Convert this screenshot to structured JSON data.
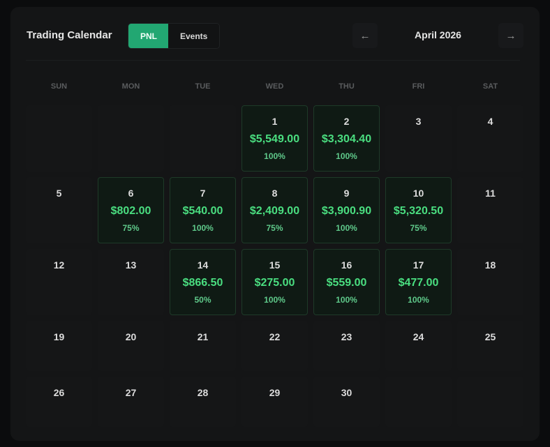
{
  "header": {
    "title": "Trading Calendar",
    "tabs": [
      "PNL",
      "Events"
    ],
    "prev": "←",
    "month": "April 2026",
    "next": "→"
  },
  "weekdays": [
    "SUN",
    "MON",
    "TUE",
    "WED",
    "THU",
    "FRI",
    "SAT"
  ],
  "weeks": [
    [
      null,
      null,
      null,
      {
        "day": "1",
        "pnl": "$5,549.00",
        "rate": "100%"
      },
      {
        "day": "2",
        "pnl": "$3,304.40",
        "rate": "100%"
      },
      {
        "day": "3"
      },
      {
        "day": "4"
      }
    ],
    [
      {
        "day": "5"
      },
      {
        "day": "6",
        "pnl": "$802.00",
        "rate": "75%"
      },
      {
        "day": "7",
        "pnl": "$540.00",
        "rate": "100%"
      },
      {
        "day": "8",
        "pnl": "$2,409.00",
        "rate": "75%"
      },
      {
        "day": "9",
        "pnl": "$3,900.90",
        "rate": "100%"
      },
      {
        "day": "10",
        "pnl": "$5,320.50",
        "rate": "75%"
      },
      {
        "day": "11"
      }
    ],
    [
      {
        "day": "12"
      },
      {
        "day": "13"
      },
      {
        "day": "14",
        "pnl": "$866.50",
        "rate": "50%"
      },
      {
        "day": "15",
        "pnl": "$275.00",
        "rate": "100%"
      },
      {
        "day": "16",
        "pnl": "$559.00",
        "rate": "100%"
      },
      {
        "day": "17",
        "pnl": "$477.00",
        "rate": "100%"
      },
      {
        "day": "18"
      }
    ],
    [
      {
        "day": "19"
      },
      {
        "day": "20"
      },
      {
        "day": "21"
      },
      {
        "day": "22"
      },
      {
        "day": "23"
      },
      {
        "day": "24"
      },
      {
        "day": "25"
      }
    ],
    [
      {
        "day": "26"
      },
      {
        "day": "27"
      },
      {
        "day": "28"
      },
      {
        "day": "29"
      },
      {
        "day": "30"
      },
      null,
      null
    ]
  ]
}
